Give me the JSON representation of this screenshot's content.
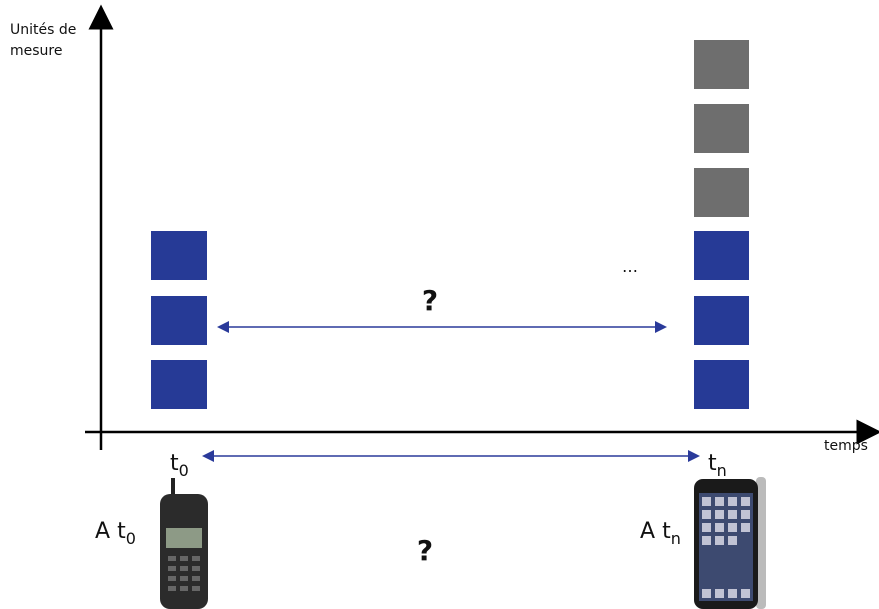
{
  "y_axis_label": [
    "Unités de",
    "mesure"
  ],
  "x_axis_label": "temps",
  "time_start": {
    "base": "t",
    "sub": "0"
  },
  "time_end": {
    "base": "t",
    "sub": "n"
  },
  "ellipsis": "…",
  "question_top": "?",
  "question_bottom": "?",
  "phone_start_label": {
    "prefix": "A",
    "base": "t",
    "sub": "0"
  },
  "phone_end_label": {
    "prefix": "A",
    "base": "t",
    "sub": "n"
  }
}
